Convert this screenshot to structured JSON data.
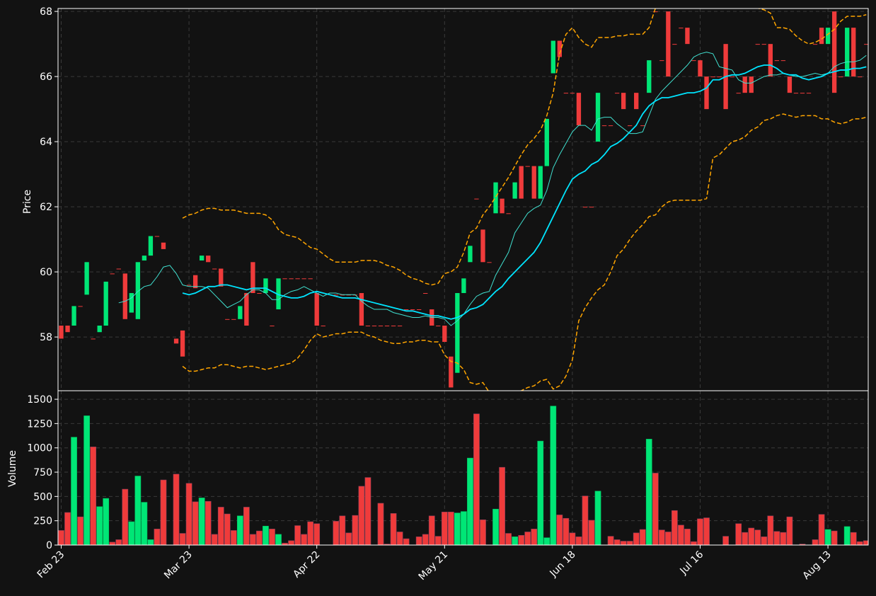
{
  "chart_data": {
    "type": "candlestick",
    "y_label": "Price",
    "volume_label": "Volume",
    "up_color": "#00e676",
    "down_color": "#ef3b3b",
    "grid": true,
    "ylim": [
      56.35,
      68.09
    ],
    "yticks": [
      58,
      60,
      62,
      64,
      66,
      68
    ],
    "volume_ylim": [
      0,
      1588
    ],
    "volume_yticks": [
      0,
      250,
      500,
      750,
      1000,
      1250,
      1500
    ],
    "categories": [
      "Feb 23",
      null,
      null,
      null,
      null,
      null,
      null,
      null,
      null,
      null,
      null,
      null,
      null,
      null,
      null,
      null,
      null,
      null,
      null,
      null,
      "Mar 23",
      null,
      null,
      null,
      null,
      null,
      null,
      null,
      null,
      null,
      null,
      null,
      null,
      null,
      null,
      null,
      null,
      null,
      null,
      null,
      "Apr 22",
      null,
      null,
      null,
      null,
      null,
      null,
      null,
      null,
      null,
      null,
      null,
      null,
      null,
      null,
      null,
      null,
      null,
      null,
      null,
      "May 21",
      null,
      null,
      null,
      null,
      null,
      null,
      null,
      null,
      null,
      null,
      null,
      null,
      null,
      null,
      null,
      null,
      null,
      null,
      null,
      "Jun 18",
      null,
      null,
      null,
      null,
      null,
      null,
      null,
      null,
      null,
      null,
      null,
      null,
      null,
      null,
      null,
      null,
      null,
      null,
      null,
      "Jul 16",
      null,
      null,
      null,
      null,
      null,
      null,
      null,
      null,
      null,
      null,
      null,
      null,
      null,
      null,
      null,
      null,
      null,
      null,
      null,
      "Aug 13",
      null,
      null,
      null,
      null,
      null,
      null
    ],
    "open": [
      58.35,
      58.35,
      58.35,
      58.95,
      59.3,
      57.95,
      58.15,
      58.35,
      59.95,
      60.1,
      59.95,
      58.75,
      58.55,
      60.35,
      60.5,
      61.1,
      60.9,
      null,
      57.95,
      58.2,
      59.6,
      59.9,
      60.35,
      60.5,
      60.1,
      60.1,
      58.55,
      58.55,
      58.55,
      59.35,
      60.3,
      59.35,
      59.35,
      58.35,
      58.85,
      59.8,
      59.8,
      59.8,
      59.8,
      59.8,
      59.35,
      58.35,
      null,
      59.3,
      59.3,
      59.3,
      59.3,
      59.35,
      58.35,
      58.35,
      58.35,
      58.35,
      58.35,
      58.35,
      58.85,
      58.85,
      58.85,
      59.35,
      58.85,
      58.35,
      58.35,
      57.4,
      56.9,
      59.35,
      60.3,
      62.25,
      61.3,
      60.3,
      61.8,
      62.25,
      61.8,
      62.25,
      63.25,
      63.25,
      63.25,
      62.25,
      63.25,
      66.1,
      67.1,
      65.5,
      65.5,
      65.5,
      62.0,
      62.0,
      64.0,
      64.5,
      64.5,
      65.5,
      65.5,
      64.5,
      65.5,
      64.5,
      65.5,
      68.0,
      66.5,
      68.0,
      67.0,
      67.5,
      67.5,
      66.5,
      66.5,
      66.0,
      66.0,
      66.0,
      67.0,
      66.0,
      65.5,
      66.0,
      66.0,
      67.0,
      67.0,
      67.0,
      66.5,
      66.5,
      66.0,
      65.5,
      65.5,
      65.5,
      67.0,
      67.5,
      67.0,
      68.0,
      66.0,
      66.0,
      67.5,
      66.0,
      67.0
    ],
    "close": [
      57.95,
      58.15,
      58.95,
      58.95,
      60.3,
      57.95,
      58.35,
      59.7,
      59.95,
      60.1,
      58.55,
      59.35,
      60.3,
      60.5,
      61.1,
      61.1,
      60.7,
      null,
      57.8,
      57.4,
      59.6,
      59.5,
      60.5,
      60.3,
      60.1,
      59.55,
      58.55,
      58.55,
      58.95,
      58.35,
      59.35,
      59.35,
      59.8,
      58.35,
      59.8,
      59.8,
      59.8,
      59.8,
      59.8,
      59.8,
      58.35,
      58.35,
      null,
      59.3,
      59.3,
      59.3,
      59.3,
      58.35,
      58.35,
      58.35,
      58.35,
      58.35,
      58.35,
      58.35,
      58.85,
      58.85,
      58.85,
      59.35,
      58.35,
      58.35,
      57.85,
      56.45,
      59.35,
      59.8,
      60.8,
      62.25,
      60.3,
      60.3,
      62.75,
      61.8,
      61.8,
      62.75,
      62.25,
      63.25,
      62.25,
      63.25,
      64.7,
      67.1,
      66.6,
      65.5,
      65.5,
      64.5,
      62.0,
      62.0,
      65.5,
      64.5,
      64.5,
      65.5,
      65.0,
      64.5,
      65.0,
      64.5,
      66.5,
      68.0,
      66.5,
      66.0,
      67.0,
      67.5,
      67.0,
      66.5,
      66.0,
      65.0,
      66.0,
      66.0,
      65.0,
      66.0,
      65.5,
      65.5,
      65.5,
      67.0,
      67.0,
      66.0,
      66.5,
      66.5,
      65.5,
      65.5,
      65.5,
      65.5,
      67.0,
      67.0,
      67.5,
      65.5,
      66.0,
      67.5,
      66.0,
      66.0,
      67.0
    ],
    "volume": [
      150,
      335,
      1110,
      290,
      1330,
      1010,
      395,
      480,
      30,
      55,
      575,
      240,
      710,
      440,
      55,
      165,
      670,
      0,
      730,
      120,
      635,
      445,
      485,
      450,
      110,
      390,
      320,
      150,
      300,
      390,
      110,
      145,
      195,
      165,
      110,
      20,
      45,
      200,
      110,
      240,
      220,
      0,
      0,
      245,
      300,
      125,
      305,
      605,
      695,
      0,
      430,
      10,
      325,
      135,
      65,
      0,
      85,
      110,
      300,
      90,
      340,
      340,
      330,
      345,
      895,
      1350,
      260,
      0,
      370,
      800,
      120,
      85,
      100,
      135,
      165,
      1070,
      75,
      1430,
      310,
      275,
      125,
      85,
      505,
      255,
      555,
      0,
      90,
      55,
      40,
      40,
      125,
      160,
      1090,
      740,
      155,
      135,
      355,
      205,
      165,
      35,
      270,
      280,
      0,
      0,
      90,
      0,
      220,
      130,
      175,
      155,
      85,
      300,
      140,
      130,
      290,
      0,
      10,
      0,
      55,
      315,
      160,
      145,
      0,
      190,
      130,
      35,
      45
    ],
    "lines": [
      {
        "color": "#40e0d0",
        "width": 1,
        "style": "solid",
        "values": [
          null,
          null,
          null,
          null,
          null,
          null,
          null,
          null,
          null,
          59.05,
          59.1,
          59.2,
          59.4,
          59.55,
          59.6,
          59.85,
          60.15,
          60.2,
          59.95,
          59.6,
          59.55,
          59.55,
          59.55,
          59.5,
          59.3,
          59.1,
          58.9,
          59.0,
          59.1,
          59.3,
          59.45,
          59.45,
          59.35,
          59.15,
          59.15,
          59.3,
          59.4,
          59.45,
          59.55,
          59.45,
          59.35,
          59.25,
          59.35,
          59.35,
          59.3,
          59.3,
          59.3,
          59.1,
          58.95,
          58.85,
          58.85,
          58.85,
          58.75,
          58.7,
          58.65,
          58.6,
          58.6,
          58.65,
          58.6,
          58.6,
          58.55,
          58.35,
          58.5,
          58.7,
          59.0,
          59.25,
          59.35,
          59.4,
          59.9,
          60.25,
          60.6,
          61.2,
          61.5,
          61.8,
          61.95,
          62.05,
          62.5,
          63.2,
          63.6,
          63.95,
          64.3,
          64.5,
          64.5,
          64.35,
          64.7,
          64.75,
          64.75,
          64.55,
          64.4,
          64.25,
          64.25,
          64.3,
          64.8,
          65.3,
          65.55,
          65.75,
          65.95,
          66.15,
          66.35,
          66.6,
          66.7,
          66.75,
          66.7,
          66.3,
          66.25,
          66.2,
          65.9,
          65.8,
          65.8,
          65.9,
          66.0,
          66.05,
          66.05,
          66.1,
          66.05,
          66.0,
          66.0,
          66.05,
          66.1,
          66.05,
          66.1,
          66.3,
          66.4,
          66.45,
          66.45,
          66.5,
          66.65
        ]
      },
      {
        "color": "#00e5ff",
        "width": 1.8,
        "style": "solid",
        "values": [
          null,
          null,
          null,
          null,
          null,
          null,
          null,
          null,
          null,
          null,
          null,
          null,
          null,
          null,
          null,
          null,
          null,
          null,
          null,
          59.35,
          59.3,
          59.35,
          59.45,
          59.55,
          59.55,
          59.6,
          59.6,
          59.55,
          59.5,
          59.45,
          59.5,
          59.5,
          59.5,
          59.4,
          59.3,
          59.25,
          59.2,
          59.2,
          59.25,
          59.35,
          59.4,
          59.35,
          59.3,
          59.25,
          59.2,
          59.2,
          59.2,
          59.15,
          59.1,
          59.05,
          59.0,
          58.95,
          58.9,
          58.85,
          58.8,
          58.8,
          58.75,
          58.7,
          58.65,
          58.65,
          58.6,
          58.55,
          58.6,
          58.7,
          58.85,
          58.9,
          59.0,
          59.2,
          59.4,
          59.55,
          59.8,
          60.0,
          60.2,
          60.4,
          60.6,
          60.9,
          61.3,
          61.7,
          62.1,
          62.5,
          62.85,
          63.0,
          63.1,
          63.3,
          63.4,
          63.6,
          63.85,
          63.95,
          64.1,
          64.3,
          64.5,
          64.85,
          65.1,
          65.25,
          65.35,
          65.35,
          65.4,
          65.45,
          65.5,
          65.5,
          65.55,
          65.65,
          65.9,
          65.9,
          66.0,
          66.05,
          66.05,
          66.1,
          66.2,
          66.3,
          66.35,
          66.35,
          66.25,
          66.1,
          66.05,
          66.05,
          65.95,
          65.9,
          65.95,
          66.0,
          66.1,
          66.15,
          66.2,
          66.2,
          66.25,
          66.25,
          66.3
        ]
      },
      {
        "color": "#ffa500",
        "width": 1.5,
        "style": "dashed",
        "values": [
          null,
          null,
          null,
          null,
          null,
          null,
          null,
          null,
          null,
          null,
          null,
          null,
          null,
          null,
          null,
          null,
          null,
          null,
          null,
          61.65,
          61.75,
          61.8,
          61.9,
          61.95,
          61.95,
          61.9,
          61.9,
          61.9,
          61.85,
          61.8,
          61.8,
          61.8,
          61.75,
          61.6,
          61.3,
          61.15,
          61.1,
          61.05,
          60.9,
          60.75,
          60.7,
          60.55,
          60.4,
          60.3,
          60.3,
          60.3,
          60.3,
          60.35,
          60.35,
          60.35,
          60.3,
          60.2,
          60.15,
          60.05,
          59.9,
          59.8,
          59.75,
          59.65,
          59.6,
          59.65,
          59.95,
          60.0,
          60.15,
          60.6,
          61.2,
          61.35,
          61.75,
          62.0,
          62.3,
          62.6,
          62.9,
          63.25,
          63.6,
          63.9,
          64.1,
          64.35,
          64.8,
          65.5,
          66.7,
          67.3,
          67.5,
          67.2,
          67.0,
          66.9,
          67.2,
          67.2,
          67.2,
          67.25,
          67.25,
          67.3,
          67.3,
          67.3,
          67.5,
          68.1,
          68.4,
          68.5,
          68.5,
          68.4,
          68.4,
          68.4,
          68.3,
          68.25,
          68.2,
          68.2,
          68.2,
          68.15,
          68.1,
          68.2,
          68.2,
          68.1,
          68.05,
          67.95,
          67.5,
          67.5,
          67.45,
          67.25,
          67.1,
          67.0,
          67.05,
          67.15,
          67.3,
          67.45,
          67.7,
          67.85,
          67.85,
          67.85,
          67.9
        ]
      },
      {
        "color": "#ffa500",
        "width": 1.5,
        "style": "dashed",
        "values": [
          null,
          null,
          null,
          null,
          null,
          null,
          null,
          null,
          null,
          null,
          null,
          null,
          null,
          null,
          null,
          null,
          null,
          null,
          null,
          57.1,
          56.95,
          56.95,
          57.0,
          57.05,
          57.05,
          57.15,
          57.15,
          57.1,
          57.05,
          57.1,
          57.1,
          57.05,
          57.0,
          57.05,
          57.1,
          57.15,
          57.2,
          57.35,
          57.6,
          57.9,
          58.1,
          58.0,
          58.05,
          58.1,
          58.1,
          58.15,
          58.15,
          58.15,
          58.05,
          58.0,
          57.9,
          57.85,
          57.8,
          57.8,
          57.85,
          57.85,
          57.9,
          57.9,
          57.85,
          57.85,
          57.45,
          57.25,
          57.2,
          57.0,
          56.6,
          56.55,
          56.6,
          56.3,
          56.25,
          56.2,
          56.25,
          56.3,
          56.35,
          56.45,
          56.5,
          56.65,
          56.7,
          56.4,
          56.5,
          56.8,
          57.3,
          58.5,
          58.9,
          59.2,
          59.45,
          59.6,
          60.0,
          60.5,
          60.7,
          61.0,
          61.25,
          61.45,
          61.7,
          61.75,
          62.0,
          62.15,
          62.2,
          62.2,
          62.2,
          62.2,
          62.2,
          62.25,
          63.5,
          63.6,
          63.8,
          64.0,
          64.05,
          64.15,
          64.35,
          64.45,
          64.65,
          64.7,
          64.8,
          64.85,
          64.8,
          64.75,
          64.8,
          64.8,
          64.8,
          64.7,
          64.7,
          64.6,
          64.55,
          64.6,
          64.7,
          64.7,
          64.75
        ]
      }
    ]
  }
}
